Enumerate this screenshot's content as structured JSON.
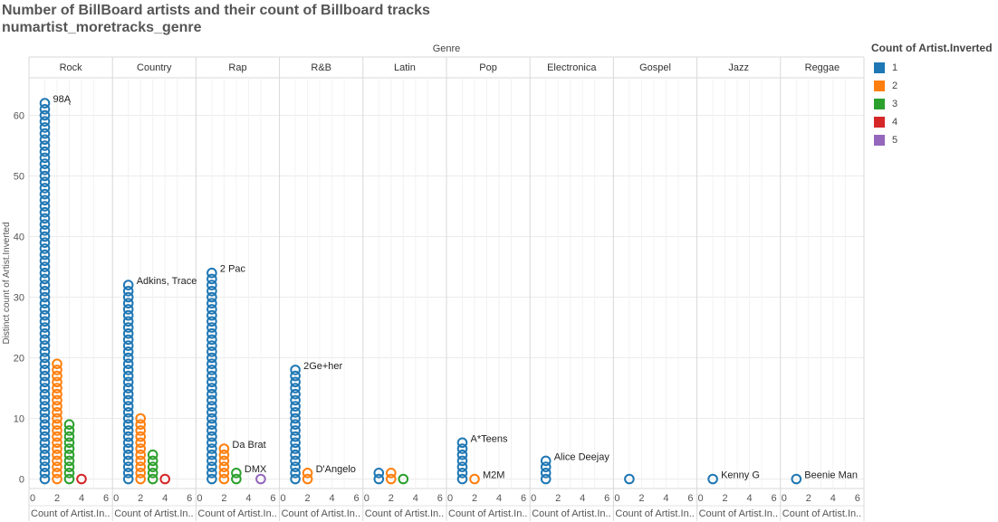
{
  "title": "Number of BillBoard artists and their count of Billboard tracks",
  "subtitle": "numartist_moretracks_genre",
  "legend": {
    "title": "Count of Artist.Inverted",
    "items": [
      {
        "label": "1",
        "color": "#1f77b4"
      },
      {
        "label": "2",
        "color": "#ff7f0e"
      },
      {
        "label": "3",
        "color": "#2ca02c"
      },
      {
        "label": "4",
        "color": "#d62728"
      },
      {
        "label": "5",
        "color": "#9467bd"
      }
    ]
  },
  "chart_data": {
    "type": "scatter",
    "column_header": "Genre",
    "xlabel": "Count of Artist.In..",
    "ylabel": "Distinct count of Artist.Inverted",
    "xlim": [
      0,
      6
    ],
    "ylim": [
      0,
      67
    ],
    "x_ticks": [
      0,
      2,
      4,
      6
    ],
    "y_ticks": [
      0,
      10,
      20,
      30,
      40,
      50,
      60
    ],
    "grid": true,
    "legend_position": "right",
    "panels": [
      {
        "genre": "Rock",
        "stacks": [
          {
            "x": 1,
            "count": 63,
            "label": "98Ą"
          },
          {
            "x": 2,
            "count": 20
          },
          {
            "x": 3,
            "count": 10
          },
          {
            "x": 4,
            "count": 1
          }
        ]
      },
      {
        "genre": "Country",
        "stacks": [
          {
            "x": 1,
            "count": 33,
            "label": "Adkins, Trace"
          },
          {
            "x": 2,
            "count": 11
          },
          {
            "x": 3,
            "count": 5
          },
          {
            "x": 4,
            "count": 1
          }
        ]
      },
      {
        "genre": "Rap",
        "stacks": [
          {
            "x": 1,
            "count": 35,
            "label": "2 Pac"
          },
          {
            "x": 2,
            "count": 6,
            "label": "Da Brat"
          },
          {
            "x": 3,
            "count": 2,
            "label": "DMX"
          },
          {
            "x": 5,
            "count": 1
          }
        ]
      },
      {
        "genre": "R&B",
        "stacks": [
          {
            "x": 1,
            "count": 19,
            "label": "2Ge+her"
          },
          {
            "x": 2,
            "count": 2,
            "label": "D'Angelo"
          }
        ]
      },
      {
        "genre": "Latin",
        "stacks": [
          {
            "x": 1,
            "count": 2
          },
          {
            "x": 2,
            "count": 2
          },
          {
            "x": 3,
            "count": 1
          }
        ]
      },
      {
        "genre": "Pop",
        "stacks": [
          {
            "x": 1,
            "count": 7,
            "label": "A*Teens"
          },
          {
            "x": 2,
            "count": 1,
            "label": "M2M"
          }
        ]
      },
      {
        "genre": "Electronica",
        "stacks": [
          {
            "x": 1,
            "count": 4,
            "label": "Alice Deejay"
          }
        ]
      },
      {
        "genre": "Gospel",
        "stacks": [
          {
            "x": 1,
            "count": 1
          }
        ]
      },
      {
        "genre": "Jazz",
        "stacks": [
          {
            "x": 1,
            "count": 1,
            "label": "Kenny G"
          }
        ]
      },
      {
        "genre": "Reggae",
        "stacks": [
          {
            "x": 1,
            "count": 1,
            "label": "Beenie Man"
          }
        ]
      }
    ]
  }
}
